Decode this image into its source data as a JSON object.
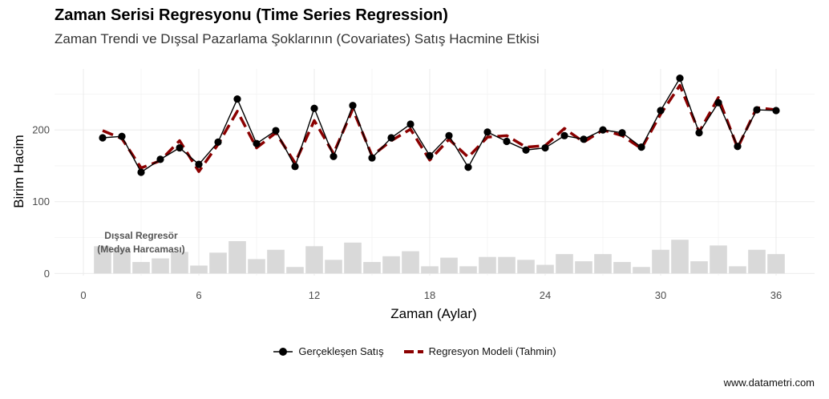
{
  "title": "Zaman Serisi Regresyonu (Time Series Regression)",
  "subtitle": "Zaman Trendi ve Dışsal Pazarlama Şoklarının (Covariates) Satış Hacmine Etkisi",
  "caption": "www.datametri.com",
  "annotation": [
    "Dışsal Regresör",
    "(Medya Harcaması)"
  ],
  "legend": {
    "actual": "Gerçekleşen Satış",
    "model": "Regresyon Modeli (Tahmin)"
  },
  "colors": {
    "actual": "#000000",
    "model": "#8b0000",
    "bars": "#d9d9d9",
    "grid": "#ebebeb",
    "annotation": "#555555"
  },
  "chart_data": {
    "type": "line",
    "xlabel": "Zaman (Aylar)",
    "ylabel": "Birim Hacim",
    "xlim": [
      -1.5,
      38
    ],
    "ylim": [
      -3,
      285
    ],
    "x_ticks": [
      0,
      6,
      12,
      18,
      24,
      30,
      36
    ],
    "y_ticks": [
      0,
      100,
      200
    ],
    "grid": true,
    "legend_position": "bottom",
    "x": [
      1,
      2,
      3,
      4,
      5,
      6,
      7,
      8,
      9,
      10,
      11,
      12,
      13,
      14,
      15,
      16,
      17,
      18,
      19,
      20,
      21,
      22,
      23,
      24,
      25,
      26,
      27,
      28,
      29,
      30,
      31,
      32,
      33,
      34,
      35,
      36
    ],
    "series": [
      {
        "name": "Gerçekleşen Satış",
        "values": [
          189,
          191,
          141,
          159,
          175,
          152,
          183,
          243,
          181,
          199,
          149,
          230,
          163,
          234,
          161,
          189,
          208,
          164,
          192,
          148,
          197,
          184,
          172,
          175,
          192,
          187,
          200,
          196,
          176,
          227,
          272,
          196,
          238,
          177,
          228,
          227
        ]
      },
      {
        "name": "Regresyon Modeli (Tahmin)",
        "values": [
          199,
          188,
          147,
          157,
          185,
          142,
          180,
          226,
          175,
          196,
          154,
          213,
          167,
          229,
          164,
          185,
          201,
          158,
          187,
          162,
          190,
          192,
          176,
          178,
          202,
          183,
          200,
          192,
          174,
          222,
          262,
          197,
          245,
          175,
          231,
          228
        ]
      }
    ],
    "covariate": {
      "name": "Dışsal Regresör (Medya Harcaması)",
      "type": "bar",
      "values": [
        38,
        35,
        16,
        21,
        30,
        11,
        29,
        45,
        20,
        33,
        9,
        38,
        19,
        43,
        16,
        24,
        31,
        10,
        22,
        10,
        23,
        23,
        19,
        12,
        27,
        17,
        27,
        16,
        9,
        33,
        47,
        17,
        39,
        10,
        33,
        27
      ]
    }
  }
}
